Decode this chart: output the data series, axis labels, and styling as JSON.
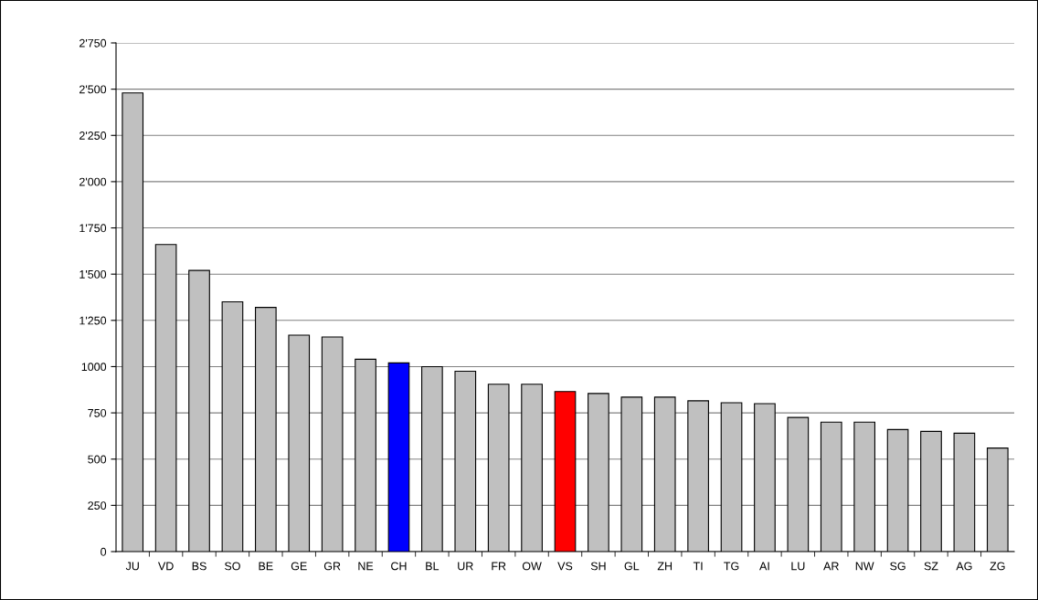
{
  "chart_data": {
    "type": "bar",
    "categories": [
      "JU",
      "VD",
      "BS",
      "SO",
      "BE",
      "GE",
      "GR",
      "NE",
      "CH",
      "BL",
      "UR",
      "FR",
      "OW",
      "VS",
      "SH",
      "GL",
      "ZH",
      "TI",
      "TG",
      "AI",
      "LU",
      "AR",
      "NW",
      "SG",
      "SZ",
      "AG",
      "ZG"
    ],
    "values": [
      2480,
      1660,
      1520,
      1350,
      1320,
      1170,
      1160,
      1040,
      1020,
      1000,
      975,
      905,
      905,
      865,
      855,
      835,
      835,
      815,
      805,
      800,
      725,
      700,
      700,
      660,
      650,
      640,
      560
    ],
    "colors": [
      "#c0c0c0",
      "#c0c0c0",
      "#c0c0c0",
      "#c0c0c0",
      "#c0c0c0",
      "#c0c0c0",
      "#c0c0c0",
      "#c0c0c0",
      "#0000ff",
      "#c0c0c0",
      "#c0c0c0",
      "#c0c0c0",
      "#c0c0c0",
      "#ff0000",
      "#c0c0c0",
      "#c0c0c0",
      "#c0c0c0",
      "#c0c0c0",
      "#c0c0c0",
      "#c0c0c0",
      "#c0c0c0",
      "#c0c0c0",
      "#c0c0c0",
      "#c0c0c0",
      "#c0c0c0",
      "#c0c0c0",
      "#c0c0c0"
    ],
    "ylim": [
      0,
      2750
    ],
    "yticks": [
      0,
      250,
      500,
      750,
      {
        "value": 1000,
        "label": "1000"
      },
      {
        "value": 1250,
        "label": "1'250"
      },
      {
        "value": 1500,
        "label": "1'500"
      },
      {
        "value": 1750,
        "label": "1'750"
      },
      {
        "value": 2000,
        "label": "2'000"
      },
      {
        "value": 2250,
        "label": "2'250"
      },
      {
        "value": 2500,
        "label": "2'500"
      },
      {
        "value": 2750,
        "label": "2'750"
      }
    ],
    "grid": "y",
    "legend": false
  }
}
